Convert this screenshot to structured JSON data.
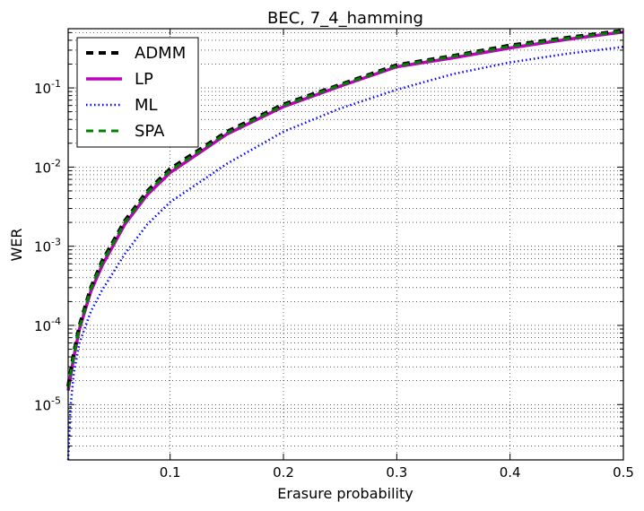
{
  "chart_data": {
    "type": "line",
    "title": "BEC, 7_4_hamming",
    "xlabel": "Erasure probability",
    "ylabel": "WER",
    "xlim": [
      0.01,
      0.5
    ],
    "ylim": [
      2e-06,
      0.56
    ],
    "y_scale": "log",
    "grid": true,
    "legend_position": "top-left",
    "x_ticks": [
      0.1,
      0.2,
      0.3,
      0.4,
      0.5
    ],
    "x_tick_labels": [
      "0.1",
      "0.2",
      "0.3",
      "0.4",
      "0.5"
    ],
    "y_ticks": [
      {
        "value": 1e-05,
        "base": "10",
        "exp": "-5"
      },
      {
        "value": 0.0001,
        "base": "10",
        "exp": "-4"
      },
      {
        "value": 0.001,
        "base": "10",
        "exp": "-3"
      },
      {
        "value": 0.01,
        "base": "10",
        "exp": "-2"
      },
      {
        "value": 0.1,
        "base": "10",
        "exp": "-1"
      }
    ],
    "series": [
      {
        "name": "ML",
        "color": "#0000ff",
        "style": "dotted",
        "x": [
          0.01,
          0.012,
          0.015,
          0.02,
          0.03,
          0.04,
          0.06,
          0.08,
          0.1,
          0.15,
          0.2,
          0.25,
          0.3,
          0.35,
          0.4,
          0.45,
          0.5
        ],
        "y": [
          2e-06,
          9e-06,
          2.5e-05,
          6e-05,
          0.00015,
          0.00028,
          0.0008,
          0.0019,
          0.0036,
          0.011,
          0.028,
          0.055,
          0.095,
          0.15,
          0.21,
          0.27,
          0.33
        ]
      },
      {
        "name": "LP",
        "color": "#bf00bf",
        "style": "solid",
        "x": [
          0.01,
          0.015,
          0.02,
          0.03,
          0.04,
          0.06,
          0.08,
          0.1,
          0.15,
          0.2,
          0.25,
          0.3,
          0.35,
          0.4,
          0.45,
          0.5
        ],
        "y": [
          1.5e-05,
          4e-05,
          9e-05,
          0.00027,
          0.00057,
          0.0019,
          0.0045,
          0.0085,
          0.026,
          0.058,
          0.105,
          0.185,
          0.24,
          0.32,
          0.41,
          0.51
        ]
      },
      {
        "name": "ADMM",
        "color": "#000000",
        "style": "dashed",
        "x": [
          0.01,
          0.015,
          0.02,
          0.03,
          0.04,
          0.06,
          0.08,
          0.1,
          0.15,
          0.2,
          0.25,
          0.3,
          0.35,
          0.4,
          0.45,
          0.5
        ],
        "y": [
          1.7e-05,
          4.5e-05,
          0.0001,
          0.0003,
          0.00065,
          0.0021,
          0.005,
          0.0095,
          0.028,
          0.062,
          0.11,
          0.195,
          0.255,
          0.345,
          0.43,
          0.53
        ]
      },
      {
        "name": "SPA",
        "color": "#008000",
        "style": "dashed",
        "x": [
          0.01,
          0.015,
          0.02,
          0.03,
          0.04,
          0.06,
          0.08,
          0.1,
          0.15,
          0.2,
          0.25,
          0.3,
          0.35,
          0.4,
          0.45,
          0.5
        ],
        "y": [
          1.6e-05,
          4.2e-05,
          9.5e-05,
          0.00029,
          0.00062,
          0.002,
          0.0048,
          0.009,
          0.027,
          0.06,
          0.108,
          0.19,
          0.25,
          0.335,
          0.42,
          0.52
        ]
      }
    ],
    "legend": [
      "ADMM",
      "LP",
      "ML",
      "SPA"
    ]
  }
}
